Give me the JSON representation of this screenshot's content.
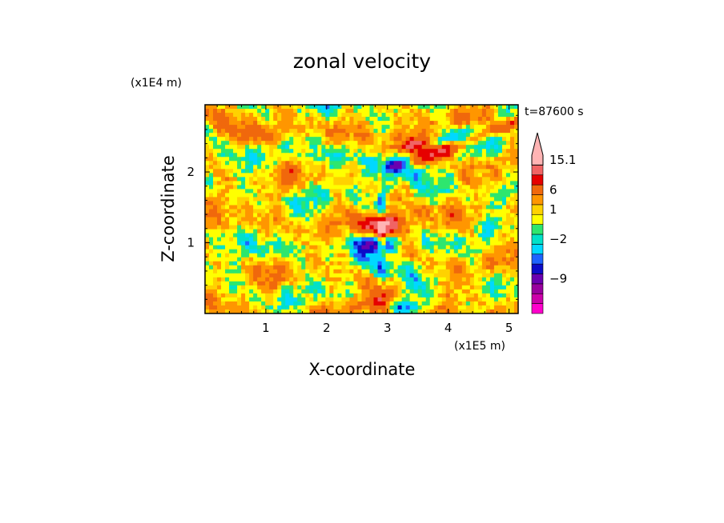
{
  "chart_data": {
    "type": "heatmap",
    "title": "zonal velocity",
    "xlabel": "X-coordinate",
    "ylabel": "Z-coordinate",
    "x_unit": "(x1E5 m)",
    "y_unit": "(x1E4 m)",
    "time_label": "t=87600 s",
    "xlim": [
      0,
      5.15
    ],
    "ylim": [
      0,
      2.95
    ],
    "x_ticks": [
      {
        "value": 1,
        "label": "1"
      },
      {
        "value": 2,
        "label": "2"
      },
      {
        "value": 3,
        "label": "3"
      },
      {
        "value": 4,
        "label": "4"
      },
      {
        "value": 5,
        "label": "5"
      }
    ],
    "y_ticks": [
      {
        "value": 1,
        "label": "1"
      },
      {
        "value": 2,
        "label": "2"
      }
    ],
    "colorbar": {
      "bands": [
        "#ff00cc",
        "#cc00aa",
        "#99009f",
        "#6a00b0",
        "#0c0cc8",
        "#1e64ff",
        "#00d8ff",
        "#00e1c8",
        "#2ee66e",
        "#ffff00",
        "#ffd200",
        "#ff9600",
        "#f0680c",
        "#e60000",
        "#f06464",
        "#ffb4b4"
      ],
      "labels": [
        {
          "label": "15.1",
          "band": 15
        },
        {
          "label": "6",
          "band": 12
        },
        {
          "label": "1",
          "band": 10
        },
        {
          "label": "−2",
          "band": 7
        },
        {
          "label": "−9",
          "band": 3
        }
      ]
    },
    "field_features": [
      {
        "x": 3.55,
        "z": 2.35,
        "value": 6
      },
      {
        "x": 3.2,
        "z": 2.08,
        "value": -6
      },
      {
        "x": 4.4,
        "z": 2.48,
        "value": -3
      },
      {
        "x": 2.85,
        "z": 1.0,
        "value": -7
      },
      {
        "x": 2.92,
        "z": 1.25,
        "value": 8
      },
      {
        "x": 2.75,
        "z": 0.12,
        "value": 5
      },
      {
        "x": 3.25,
        "z": 0.1,
        "value": -6
      },
      {
        "x": 1.0,
        "z": 2.5,
        "value": 3
      },
      {
        "x": 2.25,
        "z": 2.25,
        "value": -2
      }
    ]
  }
}
